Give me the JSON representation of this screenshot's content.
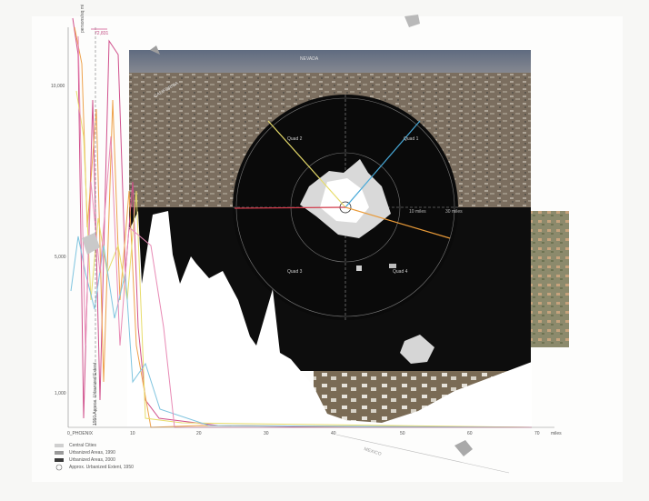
{
  "x_axis": {
    "origin_label": "0_PHOENIX",
    "ticks": [
      "10",
      "20",
      "30",
      "40",
      "50",
      "60",
      "70"
    ],
    "unit": "miles"
  },
  "y_axis": {
    "label": "persons/sq mi",
    "ticks": [
      "10,000",
      "5,000",
      "1,000"
    ]
  },
  "annotations": {
    "vertical_marker": "72,831",
    "vertical_caption": "1950 Approx. Urbanized Extent",
    "radar_ring_1": "10 miles",
    "radar_ring_2": "30 miles",
    "quad_1": "Quad 1",
    "quad_2": "Quad 2",
    "quad_3": "Quad 3",
    "quad_4": "Quad 4",
    "mexico": "MEXICO",
    "california": "CALIFORNIA",
    "nevada": "NEVADA"
  },
  "legend": [
    {
      "label": "Central Cities",
      "swatch": "#cfcfcf"
    },
    {
      "label": "Urbanized Areas, 1990",
      "swatch": "#9a9a9a"
    },
    {
      "label": "Urbanized Areas, 2000",
      "swatch": "#3a3a3a"
    },
    {
      "label": "Approx. Urbanized Extent, 1950",
      "swatch": "circle"
    }
  ],
  "colors": {
    "line_magenta": "#d0508c",
    "line_orange": "#eea24b",
    "line_yellow": "#e7dc6a",
    "line_cyan": "#7fc4df",
    "line_pink": "#e88ab5",
    "ray_yellow": "#e7dc6a",
    "ray_cyan": "#48a9d8",
    "ray_orange": "#e99a38",
    "ray_red": "#d23b4b"
  }
}
